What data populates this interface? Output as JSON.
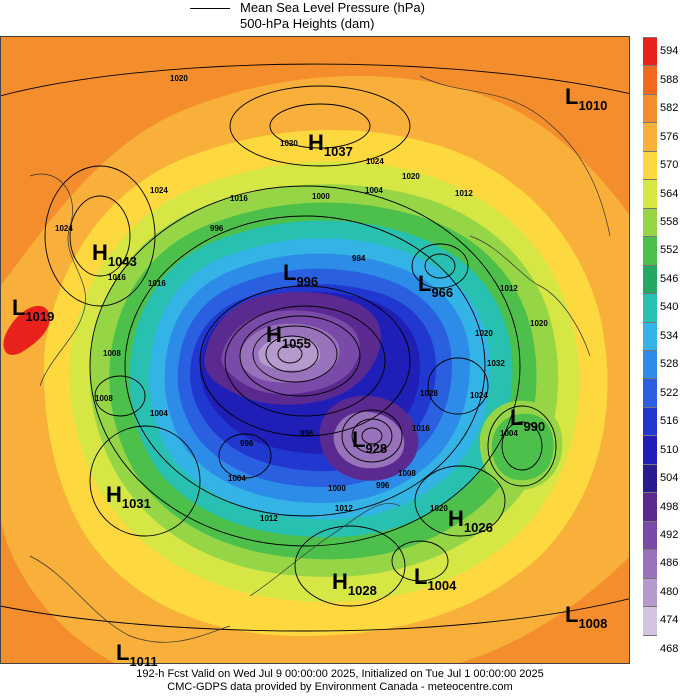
{
  "legend": {
    "mslp_label": "Mean Sea Level Pressure (hPa)",
    "heights_label": "500-hPa Heights (dam)"
  },
  "colorbar": {
    "levels": [
      "594",
      "588",
      "582",
      "576",
      "570",
      "564",
      "558",
      "552",
      "546",
      "540",
      "534",
      "528",
      "522",
      "516",
      "510",
      "504",
      "498",
      "492",
      "486",
      "480",
      "474",
      "468"
    ],
    "colors": [
      "#e8211c",
      "#f0691e",
      "#f48d2c",
      "#f9b03a",
      "#fdd83e",
      "#d6e645",
      "#96d646",
      "#4cc04a",
      "#26a865",
      "#28c0b0",
      "#33b3e6",
      "#2d8ce8",
      "#2a5fe0",
      "#2138d0",
      "#1f1fb8",
      "#2a1a8f",
      "#5a2a90",
      "#7a4aa8",
      "#9872bb",
      "#b59ace",
      "#d3c4e0",
      "#ffffff"
    ]
  },
  "centers": [
    {
      "type": "H",
      "value": "1037"
    },
    {
      "type": "L",
      "value": "1010"
    },
    {
      "type": "H",
      "value": "1043"
    },
    {
      "type": "L",
      "value": "1019"
    },
    {
      "type": "L",
      "value": "996"
    },
    {
      "type": "L",
      "value": "966"
    },
    {
      "type": "H",
      "value": "1055"
    },
    {
      "type": "L",
      "value": "990"
    },
    {
      "type": "L",
      "value": "928"
    },
    {
      "type": "H",
      "value": "1031"
    },
    {
      "type": "H",
      "value": "1026"
    },
    {
      "type": "H",
      "value": "1028"
    },
    {
      "type": "L",
      "value": "1004"
    },
    {
      "type": "L",
      "value": "1008"
    },
    {
      "type": "L",
      "value": "1011"
    }
  ],
  "isobar_labels": [
    "1020",
    "1020",
    "1024",
    "1020",
    "1012",
    "1016",
    "1024",
    "1004",
    "1000",
    "996",
    "984",
    "1008",
    "1024",
    "1016",
    "1016",
    "1020",
    "1008",
    "1004",
    "1012",
    "996",
    "1004",
    "1012",
    "1000",
    "996",
    "1008",
    "1012",
    "1020",
    "1016",
    "1028",
    "1020",
    "1024",
    "1032",
    "996",
    "1004"
  ],
  "footer": {
    "line1": "192-h Fcst Valid on Wed Jul  9 00:00:00 2025, Initialized on Tue Jul  1 00:00:00 2025",
    "line2": "CMC-GDPS data provided by Environment Canada - meteocentre.com"
  }
}
